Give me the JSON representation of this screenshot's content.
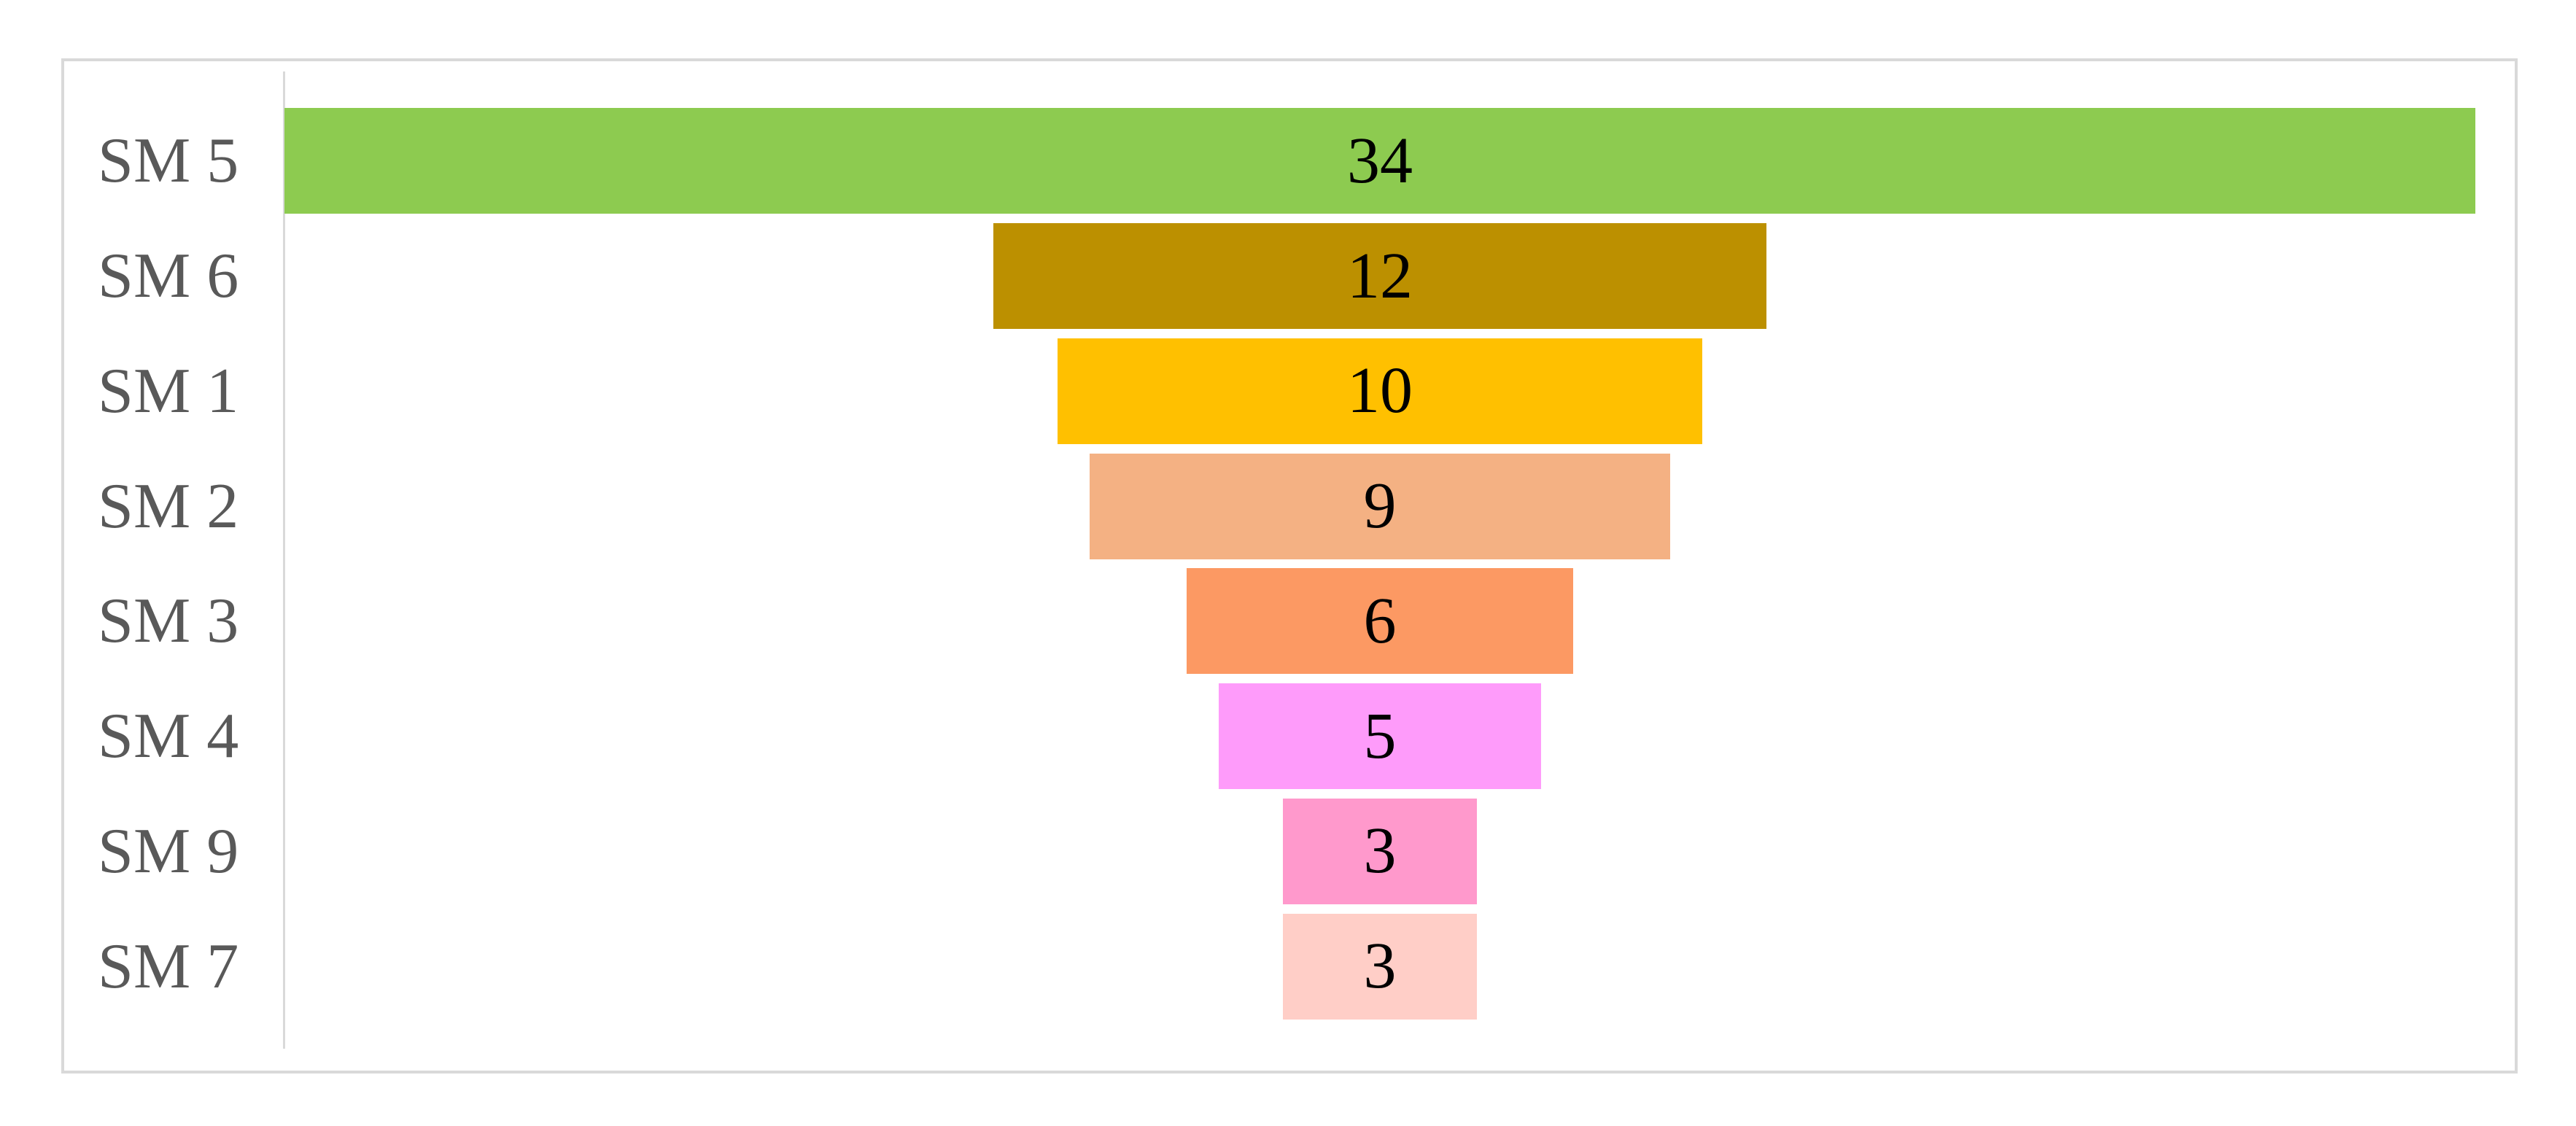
{
  "chart_data": {
    "type": "bar",
    "variant": "funnel",
    "orientation": "horizontal-centered",
    "title": "",
    "xlabel": "",
    "ylabel": "",
    "categories": [
      "SM 5",
      "SM 6",
      "SM 1",
      "SM 2",
      "SM 3",
      "SM 4",
      "SM 9",
      "SM 7"
    ],
    "values": [
      34,
      12,
      10,
      9,
      6,
      5,
      3,
      3
    ],
    "value_labels": [
      "34",
      "12",
      "10",
      "9",
      "6",
      "5",
      "3",
      "3"
    ],
    "bar_colors": [
      "#8DCB50",
      "#BC9000",
      "#FFC000",
      "#F4B183",
      "#FC9963",
      "#FE9BFA",
      "#FF99CC",
      "#FFCEC7"
    ],
    "xlim": [
      0,
      34.6
    ],
    "grid": false,
    "legend_position": "none",
    "category_label_color": "#595959",
    "value_label_color": "#000000",
    "axis_line_color": "#D9D9D9",
    "chart_border_color": "#D9D9D9",
    "background_color": "#FFFFFF"
  }
}
